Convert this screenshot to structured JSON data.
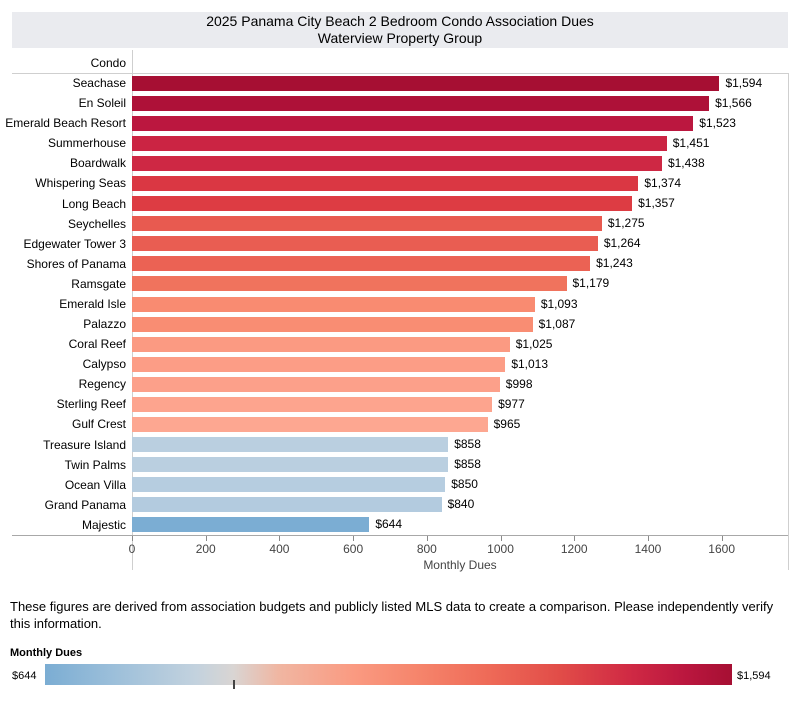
{
  "title": {
    "line1": "2025 Panama City Beach 2 Bedroom Condo Association Dues",
    "line2": "Waterview Property Group"
  },
  "row_header": "Condo",
  "chart_data": {
    "type": "bar",
    "orientation": "horizontal",
    "sort": "descending",
    "categories": [
      "Seachase",
      "En Soleil",
      "Emerald Beach Resort",
      "Summerhouse",
      "Boardwalk",
      "Whispering Seas",
      "Long Beach",
      "Seychelles",
      "Edgewater Tower 3",
      "Shores of Panama",
      "Ramsgate",
      "Emerald Isle",
      "Palazzo",
      "Coral Reef",
      "Calypso",
      "Regency",
      "Sterling Reef",
      "Gulf Crest",
      "Treasure Island",
      "Twin Palms",
      "Ocean Villa",
      "Grand Panama",
      "Majestic"
    ],
    "values": [
      1594,
      1566,
      1523,
      1451,
      1438,
      1374,
      1357,
      1275,
      1264,
      1243,
      1179,
      1093,
      1087,
      1025,
      1013,
      998,
      977,
      965,
      858,
      858,
      850,
      840,
      644
    ],
    "value_labels": [
      "$1,594",
      "$1,566",
      "$1,523",
      "$1,451",
      "$1,438",
      "$1,374",
      "$1,357",
      "$1,275",
      "$1,264",
      "$1,243",
      "$1,179",
      "$1,093",
      "$1,087",
      "$1,025",
      "$1,013",
      "$998",
      "$977",
      "$965",
      "$858",
      "$858",
      "$850",
      "$840",
      "$644"
    ],
    "bar_colors": [
      "#a60f33",
      "#ae1138",
      "#bb173f",
      "#cb2443",
      "#ce2844",
      "#da3743",
      "#dd3c43",
      "#e85a50",
      "#e95d52",
      "#eb6254",
      "#f0735d",
      "#f98b71",
      "#f98d73",
      "#fb9a82",
      "#fc9d86",
      "#fca08a",
      "#fda48e",
      "#fda791",
      "#bacfe0",
      "#bacfe0",
      "#b6cde0",
      "#b3cbdf",
      "#7badd3"
    ],
    "xlabel": "Monthly Dues",
    "x_ticks": [
      0,
      200,
      400,
      600,
      800,
      1000,
      1200,
      1400,
      1600
    ],
    "xlim": [
      0,
      1780
    ],
    "grid": false,
    "color_encoding": "diverging red-blue by Monthly Dues, center near 904"
  },
  "footnote_lines": [
    "These figures are derived from association budgets and publicly listed MLS data to create a comparison. Please independently verify",
    "this information."
  ],
  "legend": {
    "title": "Monthly Dues",
    "min_label": "$644",
    "max_label": "$1,594",
    "min_value": 644,
    "max_value": 1594,
    "gradient_stops": [
      [
        0,
        "#7badd3"
      ],
      [
        10,
        "#9cbfda"
      ],
      [
        22,
        "#c3d2de"
      ],
      [
        27.4,
        "#d9d5d3"
      ],
      [
        34,
        "#f0b6a2"
      ],
      [
        45,
        "#fa9a81"
      ],
      [
        55,
        "#f5836a"
      ],
      [
        65,
        "#ee6957"
      ],
      [
        75,
        "#e14c48"
      ],
      [
        85,
        "#d02a44"
      ],
      [
        93,
        "#bb173f"
      ],
      [
        100,
        "#a60f33"
      ]
    ]
  }
}
